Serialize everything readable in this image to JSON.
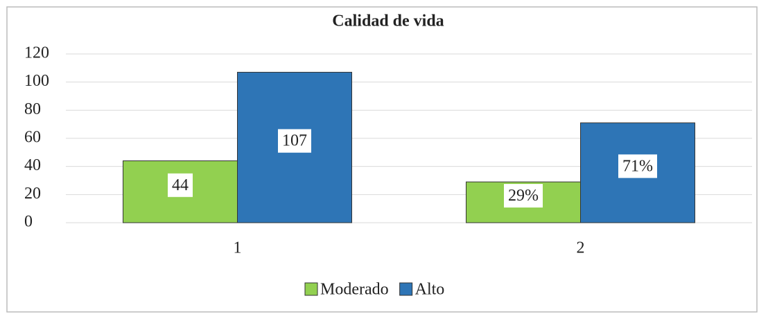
{
  "chart_data": {
    "type": "bar",
    "title": "Calidad de vida",
    "categories": [
      "1",
      "2"
    ],
    "series": [
      {
        "name": "Moderado",
        "color": "#92d050",
        "values": [
          44,
          29
        ],
        "value_labels": [
          "44",
          "29%"
        ]
      },
      {
        "name": "Alto",
        "color": "#2e75b6",
        "values": [
          107,
          71
        ],
        "value_labels": [
          "107",
          "71%"
        ]
      }
    ],
    "ylim": [
      0,
      120
    ],
    "yticks": [
      0,
      20,
      40,
      60,
      80,
      100,
      120
    ],
    "grid": true,
    "legend": "bottom"
  }
}
